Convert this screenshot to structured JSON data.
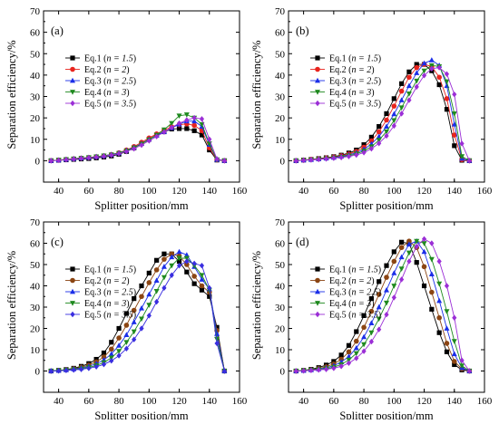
{
  "chart_data": [
    {
      "type": "line",
      "panel_label": "(a)",
      "xlabel": "Splitter position/mm",
      "ylabel": "Separation efficiency/%",
      "xlim": [
        30,
        160
      ],
      "ylim": [
        -10,
        70
      ],
      "xticks": [
        40,
        60,
        80,
        100,
        120,
        140,
        160
      ],
      "yticks": [
        0,
        10,
        20,
        30,
        40,
        50,
        60,
        70
      ],
      "legend_position": "upper-left",
      "x": [
        35,
        40,
        45,
        50,
        55,
        60,
        65,
        70,
        75,
        80,
        85,
        90,
        95,
        100,
        105,
        110,
        115,
        120,
        125,
        130,
        135,
        140,
        145,
        150
      ],
      "series": [
        {
          "name": "Eq.1 (n = 1.5)",
          "eq": "Eq.1 (",
          "param": "n = 1.5",
          "close": ")",
          "color": "#000000",
          "marker": "square",
          "values": [
            0,
            0.2,
            0.4,
            0.6,
            0.8,
            1.0,
            1.3,
            1.7,
            2.2,
            3.0,
            4.3,
            6.0,
            8.0,
            10.0,
            12.0,
            13.5,
            14.8,
            15.0,
            15.0,
            14.0,
            12.0,
            5.0,
            0.3,
            0
          ]
        },
        {
          "name": "Eq.2 (n = 2)",
          "eq": "Eq.2 (",
          "param": "n = 2",
          "close": ")",
          "color": "#e8241e",
          "marker": "circle",
          "values": [
            0,
            0.3,
            0.6,
            0.9,
            1.2,
            1.5,
            1.9,
            2.3,
            2.9,
            3.7,
            5.0,
            6.6,
            8.6,
            10.6,
            12.5,
            14.3,
            15.8,
            16.8,
            17.2,
            16.5,
            14.0,
            6.0,
            0.4,
            0
          ]
        },
        {
          "name": "Eq.3 (n = 2.5)",
          "eq": "Eq.3 (",
          "param": "n = 2.5",
          "close": ")",
          "color": "#1a2ee8",
          "marker": "triangle-up",
          "values": [
            0,
            0.3,
            0.6,
            0.9,
            1.2,
            1.5,
            1.9,
            2.3,
            2.9,
            3.6,
            4.8,
            6.2,
            8.0,
            10.0,
            11.8,
            13.5,
            15.3,
            17.0,
            18.5,
            18.5,
            16.0,
            7.5,
            0.5,
            0
          ]
        },
        {
          "name": "Eq.4 (n = 3)",
          "eq": "Eq.4 (",
          "param": "n = 3",
          "close": ")",
          "color": "#1f8a1f",
          "marker": "triangle-down",
          "values": [
            0,
            0.3,
            0.6,
            0.9,
            1.2,
            1.5,
            1.9,
            2.3,
            2.8,
            3.5,
            4.6,
            6.0,
            7.8,
            9.8,
            12.0,
            14.5,
            17.5,
            21.0,
            21.5,
            20.0,
            17.0,
            8.0,
            0.5,
            0
          ]
        },
        {
          "name": "Eq.5 (n = 3.5)",
          "eq": "Eq.5 (",
          "param": "n = 3.5",
          "close": ")",
          "color": "#9b2ed6",
          "marker": "diamond",
          "values": [
            0,
            0.2,
            0.5,
            0.8,
            1.1,
            1.4,
            1.7,
            2.1,
            2.6,
            3.3,
            4.3,
            5.6,
            7.3,
            9.3,
            11.3,
            13.4,
            15.5,
            17.5,
            19.0,
            20.0,
            19.5,
            10.0,
            0.8,
            0
          ]
        }
      ]
    },
    {
      "type": "line",
      "panel_label": "(b)",
      "xlabel": "Splitter position/mm",
      "ylabel": "Separation efficiency/%",
      "xlim": [
        30,
        160
      ],
      "ylim": [
        -10,
        70
      ],
      "xticks": [
        40,
        60,
        80,
        100,
        120,
        140,
        160
      ],
      "yticks": [
        0,
        10,
        20,
        30,
        40,
        50,
        60,
        70
      ],
      "legend_position": "upper-left",
      "x": [
        35,
        40,
        45,
        50,
        55,
        60,
        65,
        70,
        75,
        80,
        85,
        90,
        95,
        100,
        105,
        110,
        115,
        120,
        125,
        130,
        135,
        140,
        145,
        150
      ],
      "series": [
        {
          "name": "Eq.1 (n = 1.5)",
          "eq": "Eq.1 (",
          "param": "n = 1.5",
          "close": ")",
          "color": "#000000",
          "marker": "square",
          "values": [
            0,
            0.3,
            0.6,
            1.0,
            1.4,
            1.9,
            2.6,
            3.6,
            5.0,
            7.5,
            11.0,
            16.0,
            22.0,
            29.0,
            36.0,
            41.5,
            45.0,
            45.0,
            42.0,
            35.5,
            24.0,
            7.0,
            0.2,
            0
          ]
        },
        {
          "name": "Eq.2 (n = 2)",
          "eq": "Eq.2 (",
          "param": "n = 2",
          "close": ")",
          "color": "#e8241e",
          "marker": "circle",
          "values": [
            0,
            0.3,
            0.6,
            0.9,
            1.3,
            1.7,
            2.3,
            3.1,
            4.3,
            6.3,
            9.3,
            13.5,
            19.0,
            25.5,
            32.5,
            39.0,
            43.5,
            45.0,
            44.0,
            39.0,
            29.0,
            12.0,
            0.5,
            0
          ]
        },
        {
          "name": "Eq.3 (n = 2.5)",
          "eq": "Eq.3 (",
          "param": "n = 2.5",
          "close": ")",
          "color": "#1a2ee8",
          "marker": "triangle-up",
          "values": [
            0,
            0.3,
            0.5,
            0.8,
            1.1,
            1.5,
            2.0,
            2.7,
            3.7,
            5.3,
            7.8,
            11.3,
            16.0,
            21.8,
            28.3,
            35.0,
            41.0,
            45.5,
            47.0,
            44.5,
            35.0,
            17.0,
            1.0,
            0
          ]
        },
        {
          "name": "Eq.4 (n = 3)",
          "eq": "Eq.4 (",
          "param": "n = 3",
          "close": ")",
          "color": "#1f8a1f",
          "marker": "triangle-down",
          "values": [
            0,
            0.2,
            0.4,
            0.7,
            1.0,
            1.3,
            1.7,
            2.3,
            3.2,
            4.5,
            6.6,
            9.6,
            13.6,
            18.8,
            24.8,
            31.3,
            37.3,
            42.0,
            44.5,
            44.0,
            37.0,
            22.0,
            2.0,
            0
          ]
        },
        {
          "name": "Eq.5 (n = 3.5)",
          "eq": "Eq.5 (",
          "param": "n = 3.5",
          "close": ")",
          "color": "#9b2ed6",
          "marker": "diamond",
          "values": [
            0,
            0.2,
            0.4,
            0.6,
            0.9,
            1.2,
            1.5,
            2.0,
            2.7,
            3.8,
            5.6,
            8.1,
            11.6,
            16.3,
            22.0,
            28.3,
            34.5,
            39.8,
            43.0,
            43.5,
            40.5,
            31.0,
            8.0,
            0
          ]
        }
      ]
    },
    {
      "type": "line",
      "panel_label": "(c)",
      "xlabel": "Splitter position/mm",
      "ylabel": "Separation efficiency/%",
      "xlim": [
        30,
        160
      ],
      "ylim": [
        -10,
        70
      ],
      "xticks": [
        40,
        60,
        80,
        100,
        120,
        140,
        160
      ],
      "yticks": [
        0,
        10,
        20,
        30,
        40,
        50,
        60,
        70
      ],
      "legend_position": "upper-left",
      "x": [
        35,
        40,
        45,
        50,
        55,
        60,
        65,
        70,
        75,
        80,
        85,
        90,
        95,
        100,
        105,
        110,
        115,
        120,
        125,
        130,
        135,
        140,
        145,
        150
      ],
      "series": [
        {
          "name": "Eq.1 (n = 1.5)",
          "eq": "Eq.1 (",
          "param": "n = 1.5",
          "close": ")",
          "color": "#000000",
          "marker": "square",
          "values": [
            0,
            0.3,
            0.7,
            1.3,
            2.2,
            3.5,
            5.5,
            8.5,
            13.5,
            20.0,
            27.0,
            34.0,
            40.0,
            46.0,
            52.0,
            55.0,
            55.0,
            51.5,
            46.5,
            41.0,
            38.0,
            35.0,
            20.5,
            0
          ]
        },
        {
          "name": "Eq.2 (n = 2)",
          "eq": "Eq.2 (",
          "param": "n = 2",
          "close": ")",
          "color": "#8b4513",
          "marker": "circle",
          "values": [
            0,
            0.3,
            0.6,
            1.1,
            1.8,
            2.8,
            4.3,
            6.6,
            10.3,
            15.5,
            21.5,
            28.5,
            35.0,
            41.5,
            47.5,
            52.5,
            55.0,
            54.0,
            50.0,
            44.5,
            40.0,
            37.0,
            19.0,
            0
          ]
        },
        {
          "name": "Eq.3 (n = 2.5)",
          "eq": "Eq.3 (",
          "param": "n = 2.5",
          "close": ")",
          "color": "#1a2ee8",
          "marker": "triangle-up",
          "values": [
            0,
            0.2,
            0.5,
            0.9,
            1.4,
            2.2,
            3.4,
            5.2,
            8.0,
            12.0,
            17.0,
            23.0,
            29.5,
            36.0,
            42.5,
            49.0,
            53.5,
            56.0,
            54.5,
            49.0,
            43.0,
            38.5,
            17.5,
            0
          ]
        },
        {
          "name": "Eq.4 (n = 3)",
          "eq": "Eq.4 (",
          "param": "n = 3",
          "close": ")",
          "color": "#1f8a1f",
          "marker": "triangle-down",
          "values": [
            0,
            0.2,
            0.4,
            0.7,
            1.1,
            1.7,
            2.6,
            4.0,
            6.2,
            9.3,
            13.5,
            18.5,
            24.5,
            31.0,
            37.5,
            44.0,
            49.5,
            53.0,
            53.0,
            49.5,
            45.0,
            38.0,
            15.0,
            0
          ]
        },
        {
          "name": "Eq.5 (n = 3.5)",
          "eq": "Eq.5 (",
          "param": "n = 3.5",
          "close": ")",
          "color": "#3a2ee0",
          "marker": "diamond",
          "values": [
            0,
            0.1,
            0.3,
            0.5,
            0.8,
            1.3,
            2.0,
            3.1,
            4.8,
            7.2,
            10.5,
            14.8,
            20.0,
            26.0,
            32.5,
            39.0,
            45.0,
            49.5,
            51.5,
            50.5,
            49.5,
            39.0,
            13.0,
            0
          ]
        }
      ]
    },
    {
      "type": "line",
      "panel_label": "(d)",
      "xlabel": "Splitter position/mm",
      "ylabel": "Separation efficiency/%",
      "xlim": [
        30,
        160
      ],
      "ylim": [
        -10,
        70
      ],
      "xticks": [
        40,
        60,
        80,
        100,
        120,
        140,
        160
      ],
      "yticks": [
        0,
        10,
        20,
        30,
        40,
        50,
        60,
        70
      ],
      "legend_position": "upper-left",
      "x": [
        35,
        40,
        45,
        50,
        55,
        60,
        65,
        70,
        75,
        80,
        85,
        90,
        95,
        100,
        105,
        110,
        115,
        120,
        125,
        130,
        135,
        140,
        145,
        150
      ],
      "series": [
        {
          "name": "Eq.1 (n = 1.5)",
          "eq": "Eq.1 (",
          "param": "n = 1.5",
          "close": ")",
          "color": "#000000",
          "marker": "square",
          "values": [
            0,
            0.3,
            0.8,
            1.6,
            2.8,
            4.5,
            7.5,
            12.0,
            18.5,
            26.0,
            34.0,
            42.0,
            49.5,
            56.0,
            60.5,
            60.0,
            51.0,
            40.0,
            29.0,
            18.0,
            9.0,
            3.0,
            0.5,
            0
          ]
        },
        {
          "name": "Eq.2 (n = 2)",
          "eq": "Eq.2 (",
          "param": "n = 2",
          "close": ")",
          "color": "#8b4513",
          "marker": "circle",
          "values": [
            0,
            0.3,
            0.6,
            1.2,
            2.0,
            3.3,
            5.5,
            9.0,
            14.0,
            20.5,
            28.0,
            36.0,
            44.0,
            51.5,
            58.0,
            61.0,
            58.0,
            49.0,
            37.0,
            25.0,
            13.0,
            4.5,
            1.0,
            0
          ]
        },
        {
          "name": "Eq.3 (n = 2.5)",
          "eq": "Eq.3 (",
          "param": "n = 2.5",
          "close": ")",
          "color": "#1a2ee8",
          "marker": "triangle-up",
          "values": [
            0,
            0.2,
            0.5,
            0.9,
            1.5,
            2.5,
            4.2,
            6.8,
            10.8,
            16.0,
            22.5,
            30.0,
            38.0,
            46.0,
            53.5,
            59.5,
            61.0,
            56.0,
            45.5,
            33.0,
            20.0,
            8.0,
            1.5,
            0
          ]
        },
        {
          "name": "Eq.4 (n = 3)",
          "eq": "Eq.4 (",
          "param": "n = 3",
          "close": ")",
          "color": "#1f8a1f",
          "marker": "triangle-down",
          "values": [
            0,
            0.2,
            0.4,
            0.7,
            1.1,
            1.8,
            3.1,
            5.2,
            8.3,
            12.5,
            18.0,
            24.5,
            32.0,
            40.0,
            48.0,
            55.5,
            61.0,
            60.0,
            52.5,
            41.0,
            28.0,
            14.0,
            2.5,
            0
          ]
        },
        {
          "name": "Eq.5 (n = 3.5)",
          "eq": "Eq.5 (",
          "param": "n = 3.5",
          "close": ")",
          "color": "#9b2ed6",
          "marker": "diamond",
          "values": [
            0,
            0.1,
            0.3,
            0.5,
            0.8,
            1.3,
            2.2,
            3.7,
            6.0,
            9.3,
            13.8,
            19.5,
            26.5,
            34.5,
            43.0,
            51.5,
            58.5,
            62.0,
            60.0,
            51.5,
            40.0,
            25.0,
            5.0,
            0
          ]
        }
      ]
    }
  ]
}
